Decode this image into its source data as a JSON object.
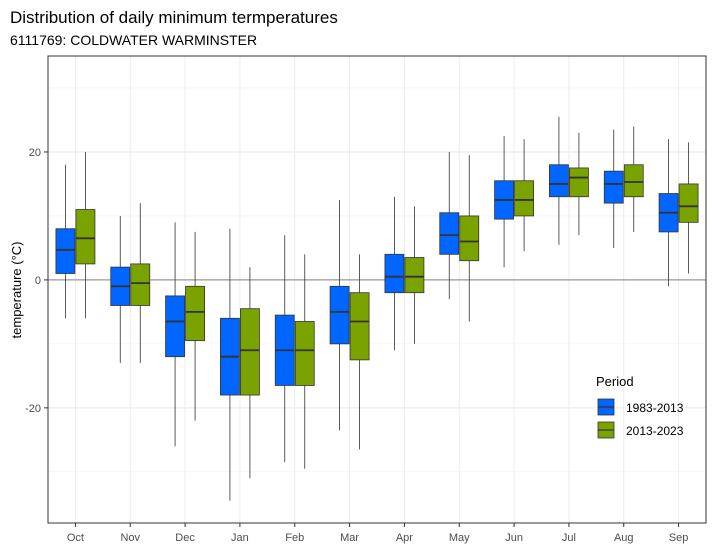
{
  "chart_data": {
    "type": "boxplot",
    "title": "Distribution of daily minimum termperatures",
    "subtitle": "6111769: COLDWATER WARMINSTER",
    "xlabel": "",
    "ylabel": "temperature (°C)",
    "ylim": [
      -38,
      35
    ],
    "y_ticks": [
      -20,
      0,
      20
    ],
    "grid": true,
    "reference_line": 0,
    "legend": {
      "title": "Period",
      "placement": "bottom-right"
    },
    "categories": [
      "Oct",
      "Nov",
      "Dec",
      "Jan",
      "Feb",
      "Mar",
      "Apr",
      "May",
      "Jun",
      "Jul",
      "Aug",
      "Sep"
    ],
    "series": [
      {
        "name": "1983-2013",
        "color": "#0066ff",
        "boxes": [
          {
            "low": -6,
            "q1": 1,
            "median": 4.7,
            "q3": 8,
            "high": 18
          },
          {
            "low": -13,
            "q1": -4,
            "median": -1,
            "q3": 2,
            "high": 10
          },
          {
            "low": -26,
            "q1": -12,
            "median": -6.5,
            "q3": -2.5,
            "high": 9
          },
          {
            "low": -34.5,
            "q1": -18,
            "median": -12,
            "q3": -6,
            "high": 8
          },
          {
            "low": -28.5,
            "q1": -16.5,
            "median": -11,
            "q3": -5.5,
            "high": 7
          },
          {
            "low": -23.5,
            "q1": -10,
            "median": -5,
            "q3": -1,
            "high": 12.5
          },
          {
            "low": -11,
            "q1": -2,
            "median": 0.5,
            "q3": 4,
            "high": 13
          },
          {
            "low": -3,
            "q1": 4,
            "median": 7,
            "q3": 10.5,
            "high": 20
          },
          {
            "low": 2,
            "q1": 9.5,
            "median": 12.5,
            "q3": 15.5,
            "high": 22.5
          },
          {
            "low": 5.5,
            "q1": 13,
            "median": 15,
            "q3": 18,
            "high": 25.5
          },
          {
            "low": 5,
            "q1": 12,
            "median": 15,
            "q3": 17,
            "high": 23.5
          },
          {
            "low": -1,
            "q1": 7.5,
            "median": 10.5,
            "q3": 13.5,
            "high": 22
          }
        ]
      },
      {
        "name": "2013-2023",
        "color": "#7aa300",
        "boxes": [
          {
            "low": -6,
            "q1": 2.5,
            "median": 6.5,
            "q3": 11,
            "high": 20
          },
          {
            "low": -13,
            "q1": -4,
            "median": -0.5,
            "q3": 2.5,
            "high": 12
          },
          {
            "low": -22,
            "q1": -9.5,
            "median": -5,
            "q3": -1,
            "high": 7.5
          },
          {
            "low": -31,
            "q1": -18,
            "median": -11,
            "q3": -4.5,
            "high": 2
          },
          {
            "low": -29.5,
            "q1": -16.5,
            "median": -11,
            "q3": -6.5,
            "high": 4
          },
          {
            "low": -26.5,
            "q1": -12.5,
            "median": -6.5,
            "q3": -2,
            "high": 4
          },
          {
            "low": -10,
            "q1": -2,
            "median": 0.5,
            "q3": 3.5,
            "high": 11.5
          },
          {
            "low": -6.5,
            "q1": 3,
            "median": 6,
            "q3": 10,
            "high": 19.5
          },
          {
            "low": 4.5,
            "q1": 10,
            "median": 12.5,
            "q3": 15.5,
            "high": 22
          },
          {
            "low": 7,
            "q1": 13,
            "median": 16,
            "q3": 17.5,
            "high": 23
          },
          {
            "low": 7.5,
            "q1": 13,
            "median": 15.3,
            "q3": 18,
            "high": 24
          },
          {
            "low": 1,
            "q1": 9,
            "median": 11.5,
            "q3": 15,
            "high": 21.5
          }
        ]
      }
    ]
  }
}
